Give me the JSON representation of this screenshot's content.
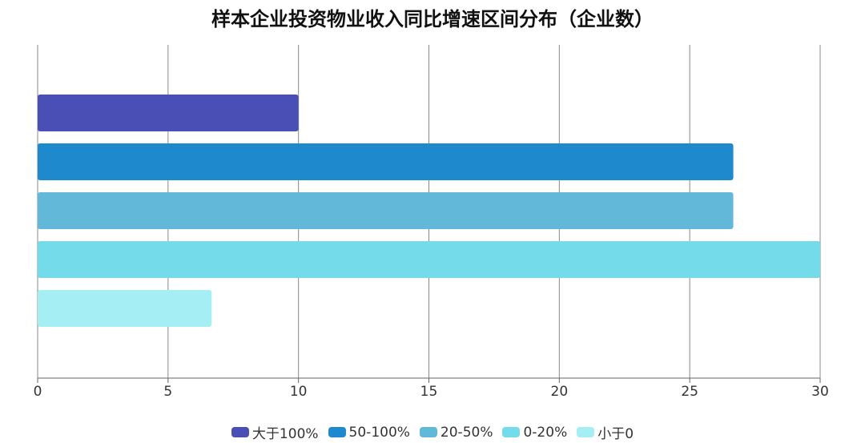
{
  "chart_data": {
    "type": "bar",
    "orientation": "horizontal",
    "title": "样本企业投资物业收入同比增速区间分布（企业数）",
    "xlabel": "",
    "ylabel": "",
    "xlim": [
      0,
      30
    ],
    "xticks": [
      "0",
      "5",
      "10",
      "15",
      "20",
      "25",
      "30"
    ],
    "grid": true,
    "legend_position": "bottom",
    "series": [
      {
        "name": "大于100%",
        "value": 10,
        "color": "#4a4fb5"
      },
      {
        "name": "50-100%",
        "value": 26.67,
        "color": "#1e89cc"
      },
      {
        "name": "20-50%",
        "value": 26.67,
        "color": "#62b8d9"
      },
      {
        "name": "0-20%",
        "value": 30,
        "color": "#74dbeb"
      },
      {
        "name": "小于0",
        "value": 6.67,
        "color": "#a5eff4"
      }
    ]
  }
}
